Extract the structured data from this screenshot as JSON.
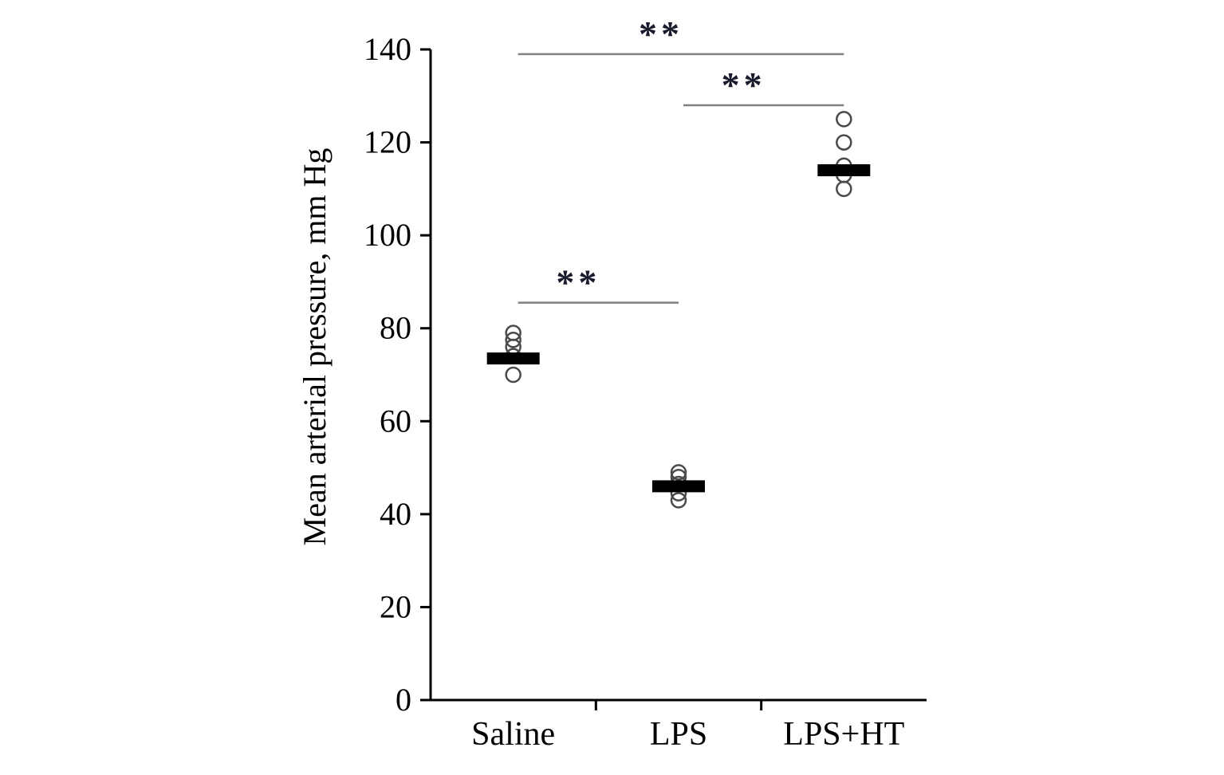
{
  "figure": {
    "description": "Dot plot of mean arterial pressure for three treatment groups with mean bars and significance brackets"
  },
  "chart_data": {
    "type": "scatter",
    "title": "",
    "xlabel": "",
    "ylabel": "Mean arterial pressure, mm Hg",
    "ylim": [
      0,
      140
    ],
    "yticks": [
      0,
      20,
      40,
      60,
      80,
      100,
      120,
      140
    ],
    "categories": [
      "Saline",
      "LPS",
      "LPS+HT"
    ],
    "grid": false,
    "legend": "none",
    "marker": {
      "shape": "open-circle",
      "color": "#4a4a4a"
    },
    "mean_bar_color": "#000000",
    "significance_line_color": "#808080",
    "significance_label_color": "#1a1a2e",
    "series": [
      {
        "name": "Saline",
        "points": [
          79,
          77.5,
          76,
          74,
          70
        ],
        "mean": 73.5
      },
      {
        "name": "LPS",
        "points": [
          49,
          48,
          46.5,
          44.5,
          43
        ],
        "mean": 46
      },
      {
        "name": "LPS+HT",
        "points": [
          125,
          120,
          115,
          113,
          110
        ],
        "mean": 114
      }
    ],
    "significance": [
      {
        "from": "Saline",
        "to": "LPS+HT",
        "y": 139,
        "label": "**"
      },
      {
        "from": "LPS",
        "to": "LPS+HT",
        "y": 128,
        "label": "**"
      },
      {
        "from": "Saline",
        "to": "LPS",
        "y": 85.5,
        "label": "**"
      }
    ]
  }
}
